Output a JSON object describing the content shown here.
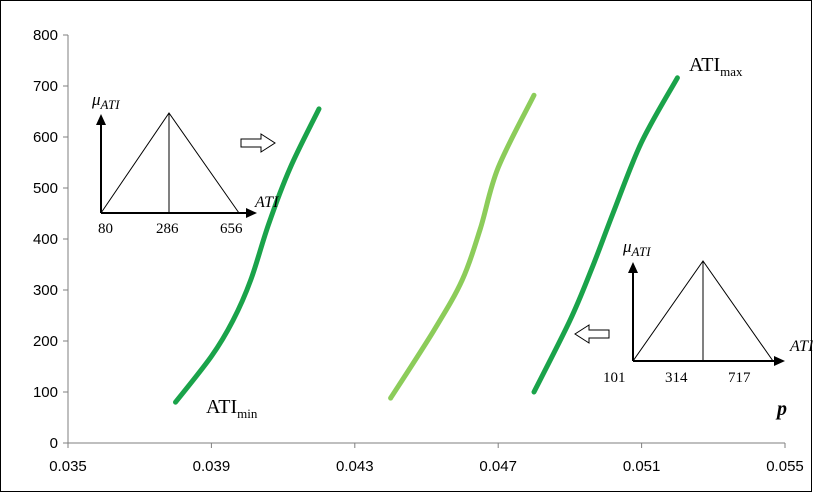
{
  "chart_data": {
    "type": "line",
    "xlim": [
      0.035,
      0.055
    ],
    "ylim": [
      0,
      800
    ],
    "x_ticks": [
      "0.035",
      "0.039",
      "0.043",
      "0.047",
      "0.051",
      "0.055"
    ],
    "y_ticks": [
      "0",
      "100",
      "200",
      "300",
      "400",
      "500",
      "600",
      "700",
      "800"
    ],
    "x_axis_label": "p",
    "grid": false,
    "series": [
      {
        "color": "#1aa34a",
        "label_base": "ATI",
        "label_sub": "min",
        "points": [
          [
            0.038,
            80
          ],
          [
            0.039,
            170
          ],
          [
            0.0396,
            240
          ],
          [
            0.0401,
            320
          ],
          [
            0.0406,
            430
          ],
          [
            0.0412,
            540
          ],
          [
            0.042,
            655
          ]
        ]
      },
      {
        "color": "#8ccc5a",
        "points": [
          [
            0.044,
            88
          ],
          [
            0.0452,
            220
          ],
          [
            0.046,
            320
          ],
          [
            0.0465,
            420
          ],
          [
            0.047,
            540
          ],
          [
            0.048,
            682
          ]
        ]
      },
      {
        "color": "#1aa34a",
        "label_base": "ATI",
        "label_sub": "max",
        "points": [
          [
            0.048,
            100
          ],
          [
            0.049,
            240
          ],
          [
            0.0496,
            340
          ],
          [
            0.0502,
            450
          ],
          [
            0.051,
            590
          ],
          [
            0.052,
            716
          ]
        ]
      }
    ],
    "insets": [
      {
        "y_label_base": "μ",
        "y_label_sub": "ATI",
        "x_label": "ATI",
        "ticks": [
          "80",
          "286",
          "656"
        ]
      },
      {
        "y_label_base": "μ",
        "y_label_sub": "ATI",
        "x_label": "ATI",
        "ticks": [
          "101",
          "314",
          "717"
        ]
      }
    ]
  }
}
